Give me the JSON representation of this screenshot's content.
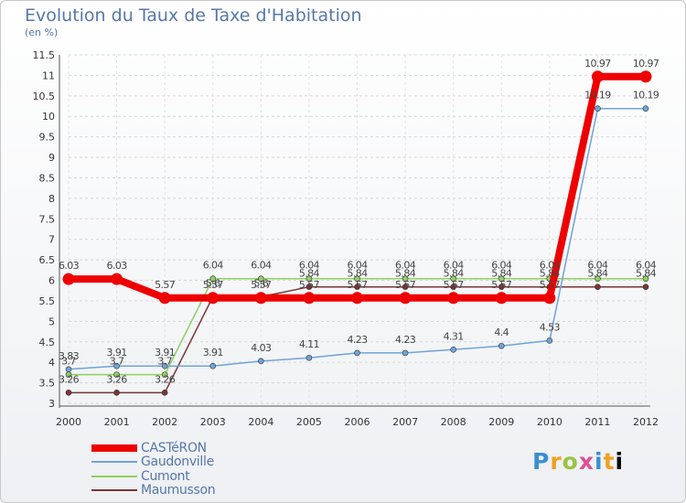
{
  "chart_data": {
    "type": "line",
    "title": "Evolution du Taux de Taxe d'Habitation",
    "subtitle": "(en %)",
    "categories": [
      "2000",
      "2001",
      "2002",
      "2003",
      "2004",
      "2005",
      "2006",
      "2007",
      "2008",
      "2009",
      "2010",
      "2011",
      "2012"
    ],
    "yticks": [
      "3",
      "3.5",
      "4",
      "4.5",
      "5",
      "5.5",
      "6",
      "6.5",
      "7",
      "7.5",
      "8",
      "8.5",
      "9",
      "9.5",
      "10",
      "10.5",
      "11",
      "11.5"
    ],
    "ylim": [
      3,
      11.5
    ],
    "series": [
      {
        "name": "CASTéRON",
        "color": "#ee0000",
        "values": [
          6.03,
          6.03,
          5.57,
          5.57,
          5.57,
          5.57,
          5.57,
          5.57,
          5.57,
          5.57,
          5.57,
          10.97,
          10.97
        ],
        "labels": [
          "6.03",
          "6.03",
          "5.57",
          "5.57",
          "5.57",
          "5.57",
          "5.57",
          "5.57",
          "5.57",
          "5.57",
          "5.57",
          "10.97",
          "10.97"
        ]
      },
      {
        "name": "Gaudonville",
        "color": "#6fa3d8",
        "values": [
          3.83,
          3.91,
          3.91,
          3.91,
          4.03,
          4.11,
          4.23,
          4.23,
          4.31,
          4.4,
          4.53,
          10.19,
          10.19
        ],
        "labels": [
          "3.83",
          "3.91",
          "3.91",
          "3.91",
          "4.03",
          "4.11",
          "4.23",
          "4.23",
          "4.31",
          "4.4",
          "4.53",
          "10.19",
          "10.19"
        ]
      },
      {
        "name": "Cumont",
        "color": "#90d060",
        "values": [
          3.7,
          3.7,
          3.7,
          6.04,
          6.04,
          6.04,
          6.04,
          6.04,
          6.04,
          6.04,
          6.04,
          6.04,
          6.04
        ],
        "labels": [
          "3.7",
          "3.7",
          "3.7",
          "6.04",
          "6.04",
          "6.04",
          "6.04",
          "6.04",
          "6.04",
          "6.04",
          "6.04",
          "6.04",
          "6.04"
        ]
      },
      {
        "name": "Maumusson",
        "color": "#7a3535",
        "values": [
          3.26,
          3.26,
          3.26,
          5.6,
          5.6,
          5.84,
          5.84,
          5.84,
          5.84,
          5.84,
          5.84,
          5.84,
          5.84
        ],
        "labels": [
          "3.26",
          "3.26",
          "3.26",
          "5.6",
          "5.6",
          "5.84",
          "5.84",
          "5.84",
          "5.84",
          "5.84",
          "5.84",
          "5.84",
          "5.84"
        ]
      }
    ]
  },
  "logo": {
    "letters": [
      "P",
      "r",
      "o",
      "x",
      "i",
      "t",
      "i"
    ]
  }
}
